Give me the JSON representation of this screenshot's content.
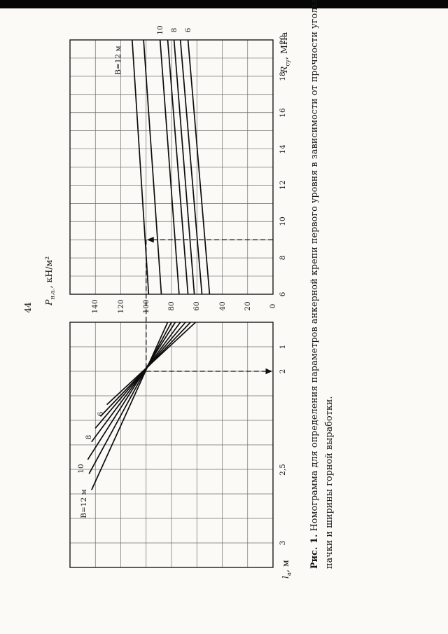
{
  "page": {
    "number": "44"
  },
  "figure": {
    "p_axis": {
      "symbol": "P",
      "sub": "н.а.",
      "unit": ", кН/м²"
    },
    "r_axis": {
      "symbol": "R",
      "sub": "су",
      "unit": ", МПа"
    },
    "l_axis": {
      "symbol": "l",
      "sub": "а",
      "unit": ", м"
    },
    "caption": {
      "bold": "Рис. 1.",
      "line1_rest": " Номограмма для определения параметров анкерной крепи первого уровня в зависимости от прочности угольной",
      "line2": "пачки и ширины горной выработки."
    }
  },
  "chart_data": {
    "type": "line",
    "title": "Номограмма для определения параметров анкерной крепи первого уровня в зависимости от прочности угольной пачки и ширины горной выработки",
    "orientation": "figure rotated 90° counterclockwise on the page; rotated text reads bottom-to-top",
    "upper_panel": {
      "x_axis": {
        "label": "Rсу, МПа",
        "min": 6,
        "max": 20,
        "ticks": [
          20,
          18,
          16,
          14,
          12,
          10,
          8,
          6
        ]
      },
      "y_axis": {
        "label": "Pн.а., кН/м²",
        "min": 0,
        "max": 160,
        "ticks": [
          140,
          120,
          100,
          80,
          60,
          40,
          20,
          0
        ]
      },
      "grid": true,
      "series": [
        {
          "name": "B=12 м",
          "label": "B=12 м",
          "R": [
            6,
            20
          ],
          "P": [
            98,
            111
          ]
        },
        {
          "name": "B=11 м",
          "label": null,
          "R": [
            6,
            20
          ],
          "P": [
            88,
            102
          ]
        },
        {
          "name": "B=10 м",
          "label": "10",
          "R": [
            6,
            20
          ],
          "P": [
            74,
            89
          ]
        },
        {
          "name": "B=9 м",
          "label": null,
          "R": [
            6,
            20
          ],
          "P": [
            67,
            83
          ]
        },
        {
          "name": "B=8 м",
          "label": "8",
          "R": [
            6,
            20
          ],
          "P": [
            62,
            78
          ]
        },
        {
          "name": "B=7 м",
          "label": null,
          "R": [
            6,
            20
          ],
          "P": [
            56,
            73
          ]
        },
        {
          "name": "B=6 м",
          "label": "6",
          "R": [
            6,
            20
          ],
          "P": [
            50,
            67
          ]
        }
      ]
    },
    "lower_panel": {
      "x_axis": {
        "label": "lа, м",
        "ticks": [
          1,
          2,
          2.5,
          3
        ]
      },
      "shared_axis": "Pн.а., кН/м²",
      "grid": true,
      "series": [
        {
          "name": "B=6 м",
          "label": "6",
          "P": [
            61,
            131
          ],
          "l": [
            0,
            2.17
          ]
        },
        {
          "name": "B=7 м",
          "label": null,
          "P": [
            65,
            136
          ],
          "l": [
            0,
            2.23
          ]
        },
        {
          "name": "B=8 м",
          "label": "8",
          "P": [
            69,
            140
          ],
          "l": [
            0,
            2.29
          ]
        },
        {
          "name": "B=9 м",
          "label": null,
          "P": [
            73,
            143
          ],
          "l": [
            0,
            2.36
          ]
        },
        {
          "name": "B=10 м",
          "label": "10",
          "P": [
            77,
            146
          ],
          "l": [
            0,
            2.45
          ]
        },
        {
          "name": "B=11 м",
          "label": null,
          "P": [
            80,
            145
          ],
          "l": [
            0,
            2.53
          ]
        },
        {
          "name": "B=12 м",
          "label": "B=12 м",
          "P": [
            83,
            143
          ],
          "l": [
            0,
            2.64
          ]
        }
      ]
    },
    "example_trace": {
      "R_su_MPa": 9,
      "B_m": 12,
      "P_na_kN_m2": 100,
      "l_a_m": 2
    }
  }
}
